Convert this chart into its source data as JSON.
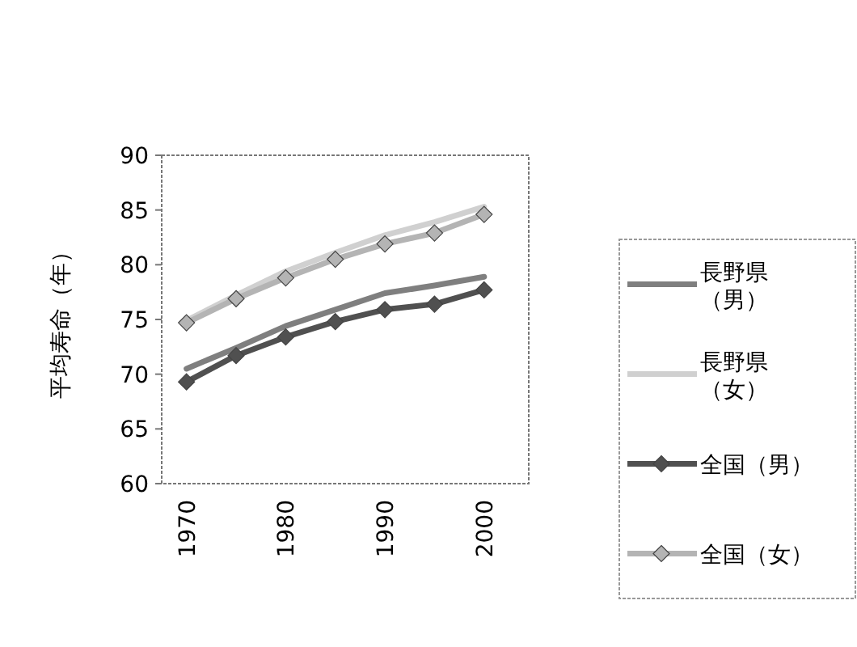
{
  "chart_data": {
    "type": "line",
    "ylabel": "平均寿命（年）",
    "x": [
      1970,
      1975,
      1980,
      1985,
      1990,
      1995,
      2000
    ],
    "xlim": [
      1967.5,
      2004.5
    ],
    "xticks": [
      1970,
      1980,
      1990,
      2000
    ],
    "ylim": [
      60,
      90
    ],
    "yticks": [
      60,
      65,
      70,
      75,
      80,
      85,
      90
    ],
    "grid": false,
    "legend": "right",
    "series": [
      {
        "name": "長野県（男）",
        "color": "#7f7f7f",
        "marker": "none",
        "values": [
          70.5,
          72.4,
          74.4,
          75.9,
          77.4,
          78.1,
          78.9
        ]
      },
      {
        "name": "長野県（女）",
        "color": "#d0d0d0",
        "marker": "none",
        "values": [
          74.9,
          77.2,
          79.4,
          81.1,
          82.7,
          83.9,
          85.3
        ]
      },
      {
        "name": "全国（男）",
        "color": "#505050",
        "marker": "diamond",
        "values": [
          69.3,
          71.7,
          73.4,
          74.8,
          75.9,
          76.4,
          77.7
        ]
      },
      {
        "name": "全国（女）",
        "color": "#b4b4b4",
        "marker": "diamond",
        "values": [
          74.7,
          76.9,
          78.8,
          80.5,
          81.9,
          82.9,
          84.6
        ]
      }
    ]
  }
}
